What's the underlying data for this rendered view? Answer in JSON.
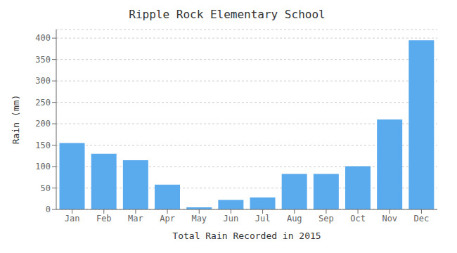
{
  "chart_data": {
    "type": "bar",
    "title": "Ripple Rock Elementary School",
    "xlabel": "Total Rain Recorded in 2015",
    "ylabel": "Rain (mm)",
    "categories": [
      "Jan",
      "Feb",
      "Mar",
      "Apr",
      "May",
      "Jun",
      "Jul",
      "Aug",
      "Sep",
      "Oct",
      "Nov",
      "Dec"
    ],
    "values": [
      155,
      130,
      115,
      58,
      5,
      22,
      28,
      83,
      83,
      101,
      210,
      395
    ],
    "color": "#5aabee",
    "ylim": [
      0,
      420
    ],
    "yticks": [
      0,
      50,
      100,
      150,
      200,
      250,
      300,
      350,
      400
    ],
    "grid": true
  }
}
